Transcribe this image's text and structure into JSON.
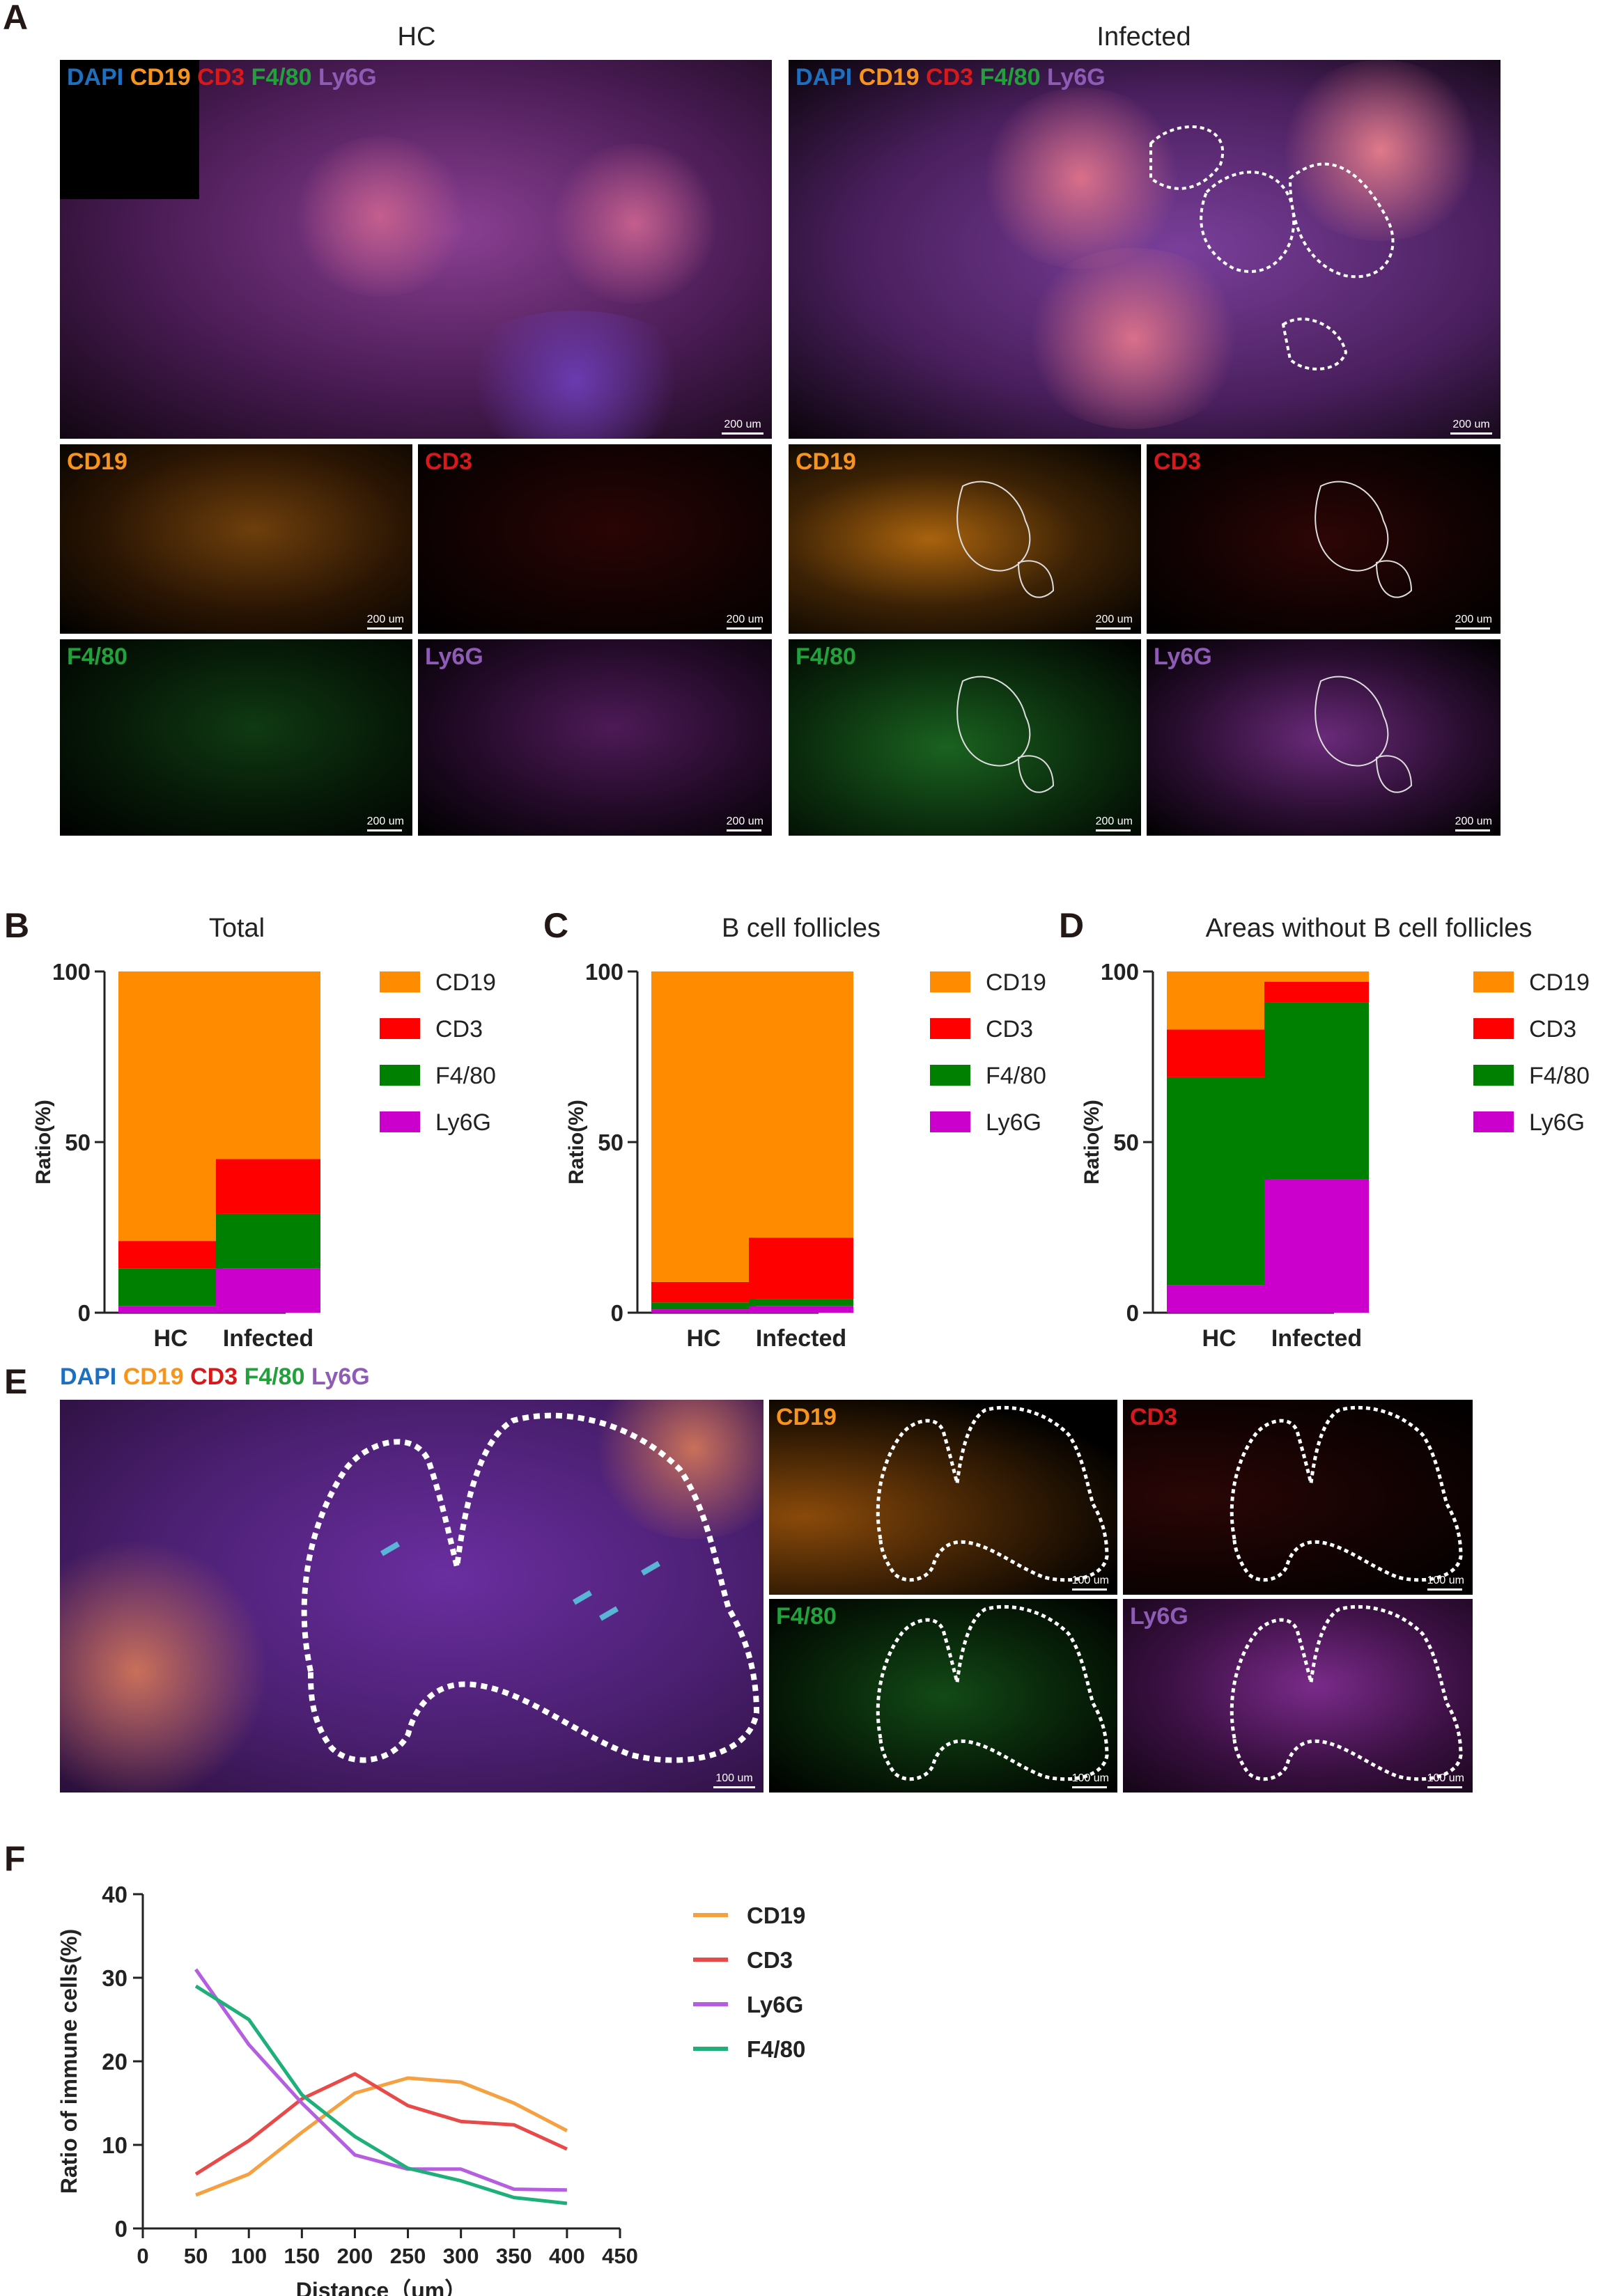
{
  "panels": {
    "A": "A",
    "B": "B",
    "C": "C",
    "D": "D",
    "E": "E",
    "F": "F"
  },
  "panel_a": {
    "titles": [
      "HC",
      "Infected"
    ],
    "merge_labels": [
      "DAPI",
      "CD19",
      "CD3",
      "F4/80",
      "Ly6G"
    ],
    "channels": [
      "CD19",
      "CD3",
      "F4/80",
      "Ly6G"
    ],
    "scale_large": "200 um",
    "scale_small": "200 um"
  },
  "panel_e": {
    "merge_labels": [
      "DAPI",
      "CD19",
      "CD3",
      "F4/80",
      "Ly6G"
    ],
    "channels": [
      "CD19",
      "CD3",
      "F4/80",
      "Ly6G"
    ],
    "scale": "100 um"
  },
  "colors": {
    "DAPI": "#1f6fc0",
    "CD19": "#f7941d",
    "CD3": "#d7191c",
    "F4/80": "#22a03c",
    "Ly6G": "#8e5bb5",
    "bar_CD19": "#ff8c00",
    "bar_CD3": "#ff0000",
    "bar_F480": "#008000",
    "bar_Ly6G": "#cc00cc",
    "line_CD19": "#f5a142",
    "line_CD3": "#e84a4a",
    "line_Ly6G": "#b65ee0",
    "line_F480": "#1fb07a"
  },
  "chart_data": [
    {
      "type": "bar",
      "stacked": true,
      "title": "Total",
      "ylabel": "Ratio(%)",
      "categories": [
        "HC",
        "Infected"
      ],
      "ylim": [
        0,
        100
      ],
      "yticks": [
        0,
        50,
        100
      ],
      "series": [
        {
          "name": "Ly6G",
          "values": [
            2,
            13
          ]
        },
        {
          "name": "F4/80",
          "values": [
            11,
            16
          ]
        },
        {
          "name": "CD3",
          "values": [
            8,
            16
          ]
        },
        {
          "name": "CD19",
          "values": [
            79,
            55
          ]
        }
      ],
      "legend_order": [
        "CD19",
        "CD3",
        "F4/80",
        "Ly6G"
      ]
    },
    {
      "type": "bar",
      "stacked": true,
      "title": "B cell follicles",
      "ylabel": "Ratio(%)",
      "categories": [
        "HC",
        "Infected"
      ],
      "ylim": [
        0,
        100
      ],
      "yticks": [
        0,
        50,
        100
      ],
      "series": [
        {
          "name": "Ly6G",
          "values": [
            1,
            2
          ]
        },
        {
          "name": "F4/80",
          "values": [
            2,
            2
          ]
        },
        {
          "name": "CD3",
          "values": [
            6,
            18
          ]
        },
        {
          "name": "CD19",
          "values": [
            91,
            78
          ]
        }
      ],
      "legend_order": [
        "CD19",
        "CD3",
        "F4/80",
        "Ly6G"
      ]
    },
    {
      "type": "bar",
      "stacked": true,
      "title": "Areas without B cell follicles",
      "ylabel": "Ratio(%)",
      "categories": [
        "HC",
        "Infected"
      ],
      "ylim": [
        0,
        100
      ],
      "yticks": [
        0,
        50,
        100
      ],
      "series": [
        {
          "name": "Ly6G",
          "values": [
            8,
            39
          ]
        },
        {
          "name": "F4/80",
          "values": [
            61,
            52
          ]
        },
        {
          "name": "CD3",
          "values": [
            14,
            6
          ]
        },
        {
          "name": "CD19",
          "values": [
            17,
            3
          ]
        }
      ],
      "legend_order": [
        "CD19",
        "CD3",
        "F4/80",
        "Ly6G"
      ]
    },
    {
      "type": "line",
      "title": "",
      "xlabel": "Distance（um）",
      "ylabel": "Ratio of immune cells(%)",
      "xlim": [
        0,
        450
      ],
      "ylim": [
        0,
        40
      ],
      "xticks": [
        0,
        50,
        100,
        150,
        200,
        250,
        300,
        350,
        400,
        450
      ],
      "yticks": [
        0,
        10,
        20,
        30,
        40
      ],
      "x": [
        50,
        100,
        150,
        200,
        250,
        300,
        350,
        400
      ],
      "series": [
        {
          "name": "CD19",
          "values": [
            4,
            6.5,
            11.5,
            16.2,
            18,
            17.5,
            15,
            11.7
          ]
        },
        {
          "name": "CD3",
          "values": [
            6.5,
            10.5,
            15.5,
            18.5,
            14.7,
            12.8,
            12.4,
            9.5
          ]
        },
        {
          "name": "Ly6G",
          "values": [
            31,
            22,
            15,
            8.8,
            7.1,
            7.1,
            4.7,
            4.6
          ]
        },
        {
          "name": "F4/80",
          "values": [
            29,
            25,
            16,
            11,
            7.2,
            5.7,
            3.7,
            3
          ]
        }
      ],
      "legend_order": [
        "CD19",
        "CD3",
        "Ly6G",
        "F4/80"
      ]
    }
  ]
}
